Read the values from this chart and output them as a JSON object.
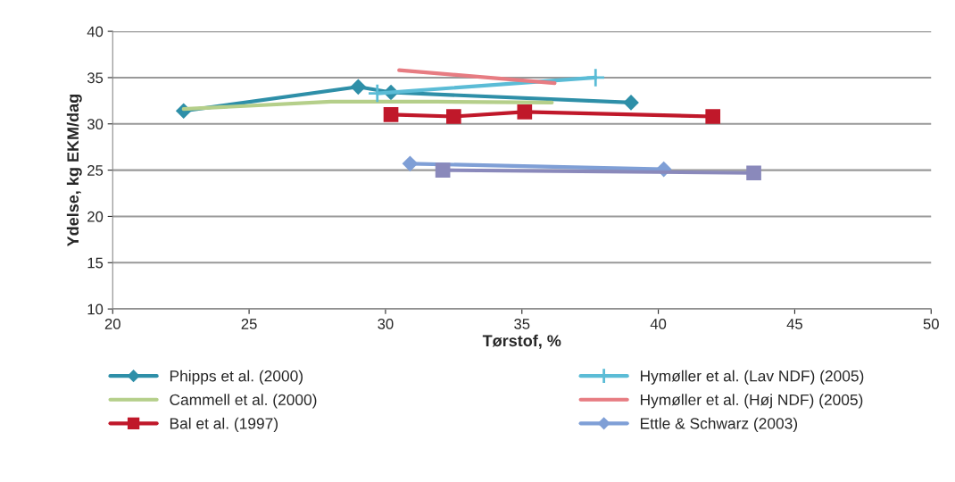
{
  "chart_data": {
    "type": "line",
    "xlabel": "Tørstof, %",
    "ylabel": "Ydelse, kg EKM/dag",
    "xlim": [
      20,
      50
    ],
    "xticks": [
      20,
      25,
      30,
      35,
      40,
      45,
      50
    ],
    "ylim": [
      10,
      40
    ],
    "yticks": [
      10,
      15,
      20,
      25,
      30,
      35,
      40
    ],
    "grid": "y",
    "legend": "bottom",
    "series": [
      {
        "name": "Phipps et al. (2000)",
        "color": "#2e8fa8",
        "marker": "diamond",
        "x": [
          22.6,
          29.0,
          30.2,
          39.0
        ],
        "values": [
          31.4,
          34.0,
          33.4,
          32.3
        ]
      },
      {
        "name": "Cammell et al. (2000)",
        "color": "#b5cf8a",
        "marker": "none",
        "x": [
          22.6,
          28.0,
          31.9,
          36.1
        ],
        "values": [
          31.6,
          32.4,
          32.4,
          32.3
        ]
      },
      {
        "name": "Bal et al. (1997)",
        "color": "#c0182a",
        "marker": "square",
        "x": [
          30.2,
          32.5,
          35.1,
          42.0
        ],
        "values": [
          31.0,
          30.8,
          31.3,
          30.8
        ]
      },
      {
        "name": "Hymøller et al. (Lav NDF) (2005)",
        "color": "#5bbcd6",
        "marker": "cross",
        "x": [
          29.7,
          37.7
        ],
        "values": [
          33.3,
          35.0
        ]
      },
      {
        "name": "Hymøller et al. (Høj NDF) (2005)",
        "color": "#e77c82",
        "marker": "none",
        "x": [
          30.5,
          36.2
        ],
        "values": [
          35.8,
          34.4
        ]
      },
      {
        "name": "Ettle & Schwarz (2003)",
        "color": "#7f9fd6",
        "marker": "diamond",
        "x": [
          30.9,
          40.2
        ],
        "values": [
          25.7,
          25.1
        ]
      },
      {
        "color": "#8a89bb",
        "marker": "square",
        "x": [
          32.1,
          43.5
        ],
        "values": [
          25.0,
          24.7
        ]
      }
    ]
  }
}
